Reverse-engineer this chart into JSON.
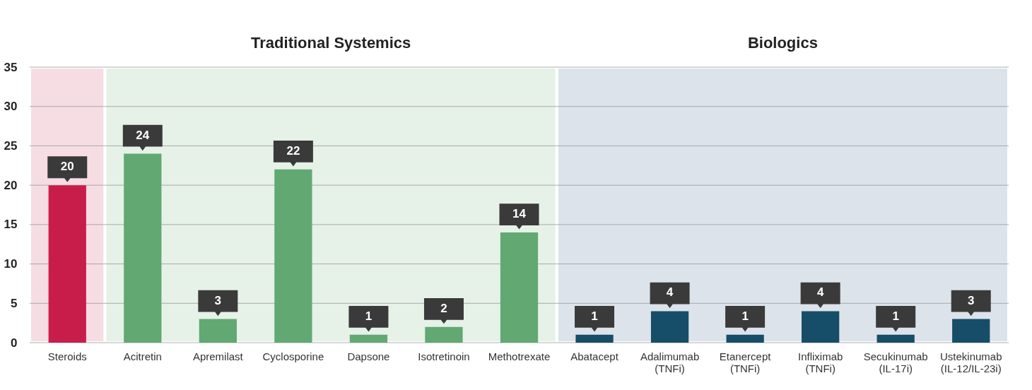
{
  "chart_data": {
    "type": "bar",
    "categories": [
      "Steroids",
      "Acitretin",
      "Apremilast",
      "Cyclosporine",
      "Dapsone",
      "Isotretinoin",
      "Methotrexate",
      "Abatacept",
      "Adalimumab (TNFi)",
      "Etanercept (TNFi)",
      "Infliximab (TNFi)",
      "Secukinumab (IL-17i)",
      "Ustekinumab (IL-12/IL-23i)"
    ],
    "values": [
      20,
      24,
      3,
      22,
      1,
      2,
      14,
      1,
      4,
      1,
      4,
      1,
      3
    ],
    "colors": [
      "#c81d4a",
      "#62a872",
      "#62a872",
      "#62a872",
      "#62a872",
      "#62a872",
      "#62a872",
      "#164d69",
      "#164d69",
      "#164d69",
      "#164d69",
      "#164d69",
      "#164d69"
    ],
    "ylim": [
      0,
      35
    ],
    "yticks": [
      0,
      5,
      10,
      15,
      20,
      25,
      30,
      35
    ],
    "grid": "y",
    "data_labels": true,
    "bands": [
      {
        "axis": "x",
        "from": "Steroids",
        "to": "Steroids",
        "label": null,
        "color": "#f6dde3"
      },
      {
        "axis": "x",
        "from": "Acitretin",
        "to": "Methotrexate",
        "label": "Traditional Systemics",
        "color": "#e6f1e8"
      },
      {
        "axis": "x",
        "from": "Abatacept",
        "to": "Ustekinumab (IL-12/IL-23i)",
        "label": "Biologics",
        "color": "#dde3ea"
      }
    ]
  }
}
